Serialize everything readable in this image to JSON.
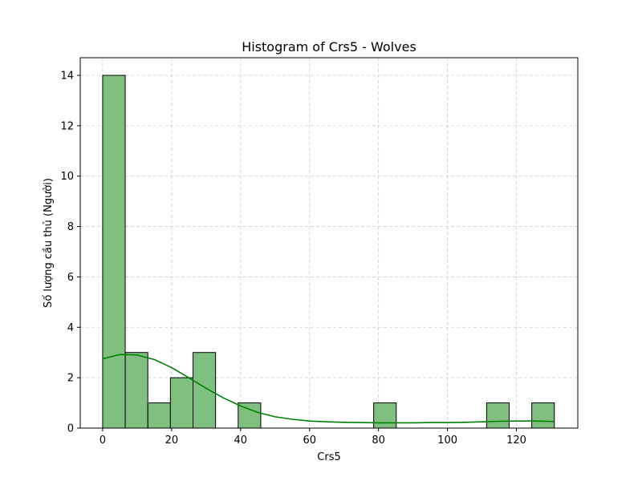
{
  "chart_data": {
    "type": "bar",
    "title": "Histogram of Crs5 - Wolves",
    "xlabel": "Crs5",
    "ylabel": "Số lượng cầu thủ (Người)",
    "xlim": [
      -6.5,
      137.8
    ],
    "ylim": [
      0,
      14.7
    ],
    "xticks": [
      0,
      20,
      40,
      60,
      80,
      100,
      120
    ],
    "yticks": [
      0,
      2,
      4,
      6,
      8,
      10,
      12,
      14
    ],
    "grid": true,
    "bar_color": "#7fbf7f",
    "bar_edge_color": "#000000",
    "kde_color": "#008000",
    "bins": [
      {
        "x0": 0,
        "x1": 6.55,
        "count": 14
      },
      {
        "x0": 6.55,
        "x1": 13.1,
        "count": 3
      },
      {
        "x0": 13.1,
        "x1": 19.65,
        "count": 1
      },
      {
        "x0": 19.65,
        "x1": 26.2,
        "count": 2
      },
      {
        "x0": 26.2,
        "x1": 32.75,
        "count": 3
      },
      {
        "x0": 32.75,
        "x1": 39.3,
        "count": 0
      },
      {
        "x0": 39.3,
        "x1": 45.85,
        "count": 1
      },
      {
        "x0": 45.85,
        "x1": 52.4,
        "count": 0
      },
      {
        "x0": 52.4,
        "x1": 58.95,
        "count": 0
      },
      {
        "x0": 58.95,
        "x1": 65.5,
        "count": 0
      },
      {
        "x0": 65.5,
        "x1": 72.05,
        "count": 0
      },
      {
        "x0": 72.05,
        "x1": 78.6,
        "count": 0
      },
      {
        "x0": 78.6,
        "x1": 85.15,
        "count": 1
      },
      {
        "x0": 85.15,
        "x1": 91.7,
        "count": 0
      },
      {
        "x0": 91.7,
        "x1": 98.25,
        "count": 0
      },
      {
        "x0": 98.25,
        "x1": 104.8,
        "count": 0
      },
      {
        "x0": 104.8,
        "x1": 111.35,
        "count": 0
      },
      {
        "x0": 111.35,
        "x1": 117.9,
        "count": 1
      },
      {
        "x0": 117.9,
        "x1": 124.45,
        "count": 0
      },
      {
        "x0": 124.45,
        "x1": 131.0,
        "count": 1
      }
    ],
    "kde": {
      "x": [
        0,
        5,
        10,
        15,
        20,
        25,
        30,
        35,
        40,
        45,
        50,
        55,
        60,
        65,
        70,
        75,
        80,
        85,
        90,
        95,
        100,
        105,
        110,
        115,
        120,
        125,
        131
      ],
      "y": [
        2.75,
        2.92,
        2.9,
        2.72,
        2.4,
        2.0,
        1.58,
        1.2,
        0.88,
        0.62,
        0.45,
        0.35,
        0.28,
        0.25,
        0.23,
        0.22,
        0.21,
        0.21,
        0.21,
        0.22,
        0.22,
        0.23,
        0.25,
        0.27,
        0.28,
        0.28,
        0.26
      ]
    }
  }
}
